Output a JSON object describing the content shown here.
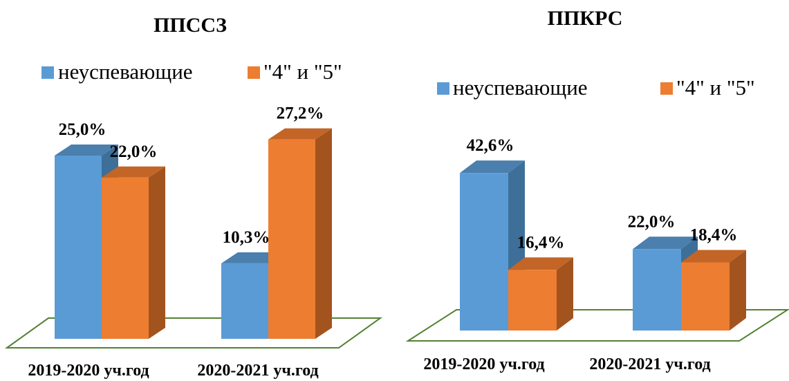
{
  "colors": {
    "series_1": "#5b9bd5",
    "series_1_side": "#3d6f99",
    "series_1_top": "#4a7fae",
    "series_2": "#ed7d31",
    "series_2_side": "#a3541e",
    "series_2_top": "#c36526",
    "floor_stroke": "#548235"
  },
  "chart_data": [
    {
      "type": "bar",
      "title": "ППССЗ",
      "categories": [
        "2019-2020 уч.год",
        "2020-2021 уч.год"
      ],
      "series": [
        {
          "name": "неуспевающие",
          "values": [
            25.0,
            10.3
          ],
          "labels": [
            "25,0%",
            "10,3%"
          ]
        },
        {
          "name": "\"4\" и \"5\"",
          "values": [
            22.0,
            27.2
          ],
          "labels": [
            "22,0%",
            "27,2%"
          ]
        }
      ],
      "ylim": [
        0,
        30
      ],
      "legend_position": "top",
      "style": "3d-column"
    },
    {
      "type": "bar",
      "title": "ППКРС",
      "categories": [
        "2019-2020 уч.год",
        "2020-2021 уч.год"
      ],
      "series": [
        {
          "name": "неуспевающие",
          "values": [
            42.6,
            22.0
          ],
          "labels": [
            "42,6%",
            "22,0%"
          ]
        },
        {
          "name": "\"4\" и \"5\"",
          "values": [
            16.4,
            18.4
          ],
          "labels": [
            "16,4%",
            "18,4%"
          ]
        }
      ],
      "ylim": [
        0,
        50
      ],
      "legend_position": "top",
      "style": "3d-column"
    }
  ]
}
